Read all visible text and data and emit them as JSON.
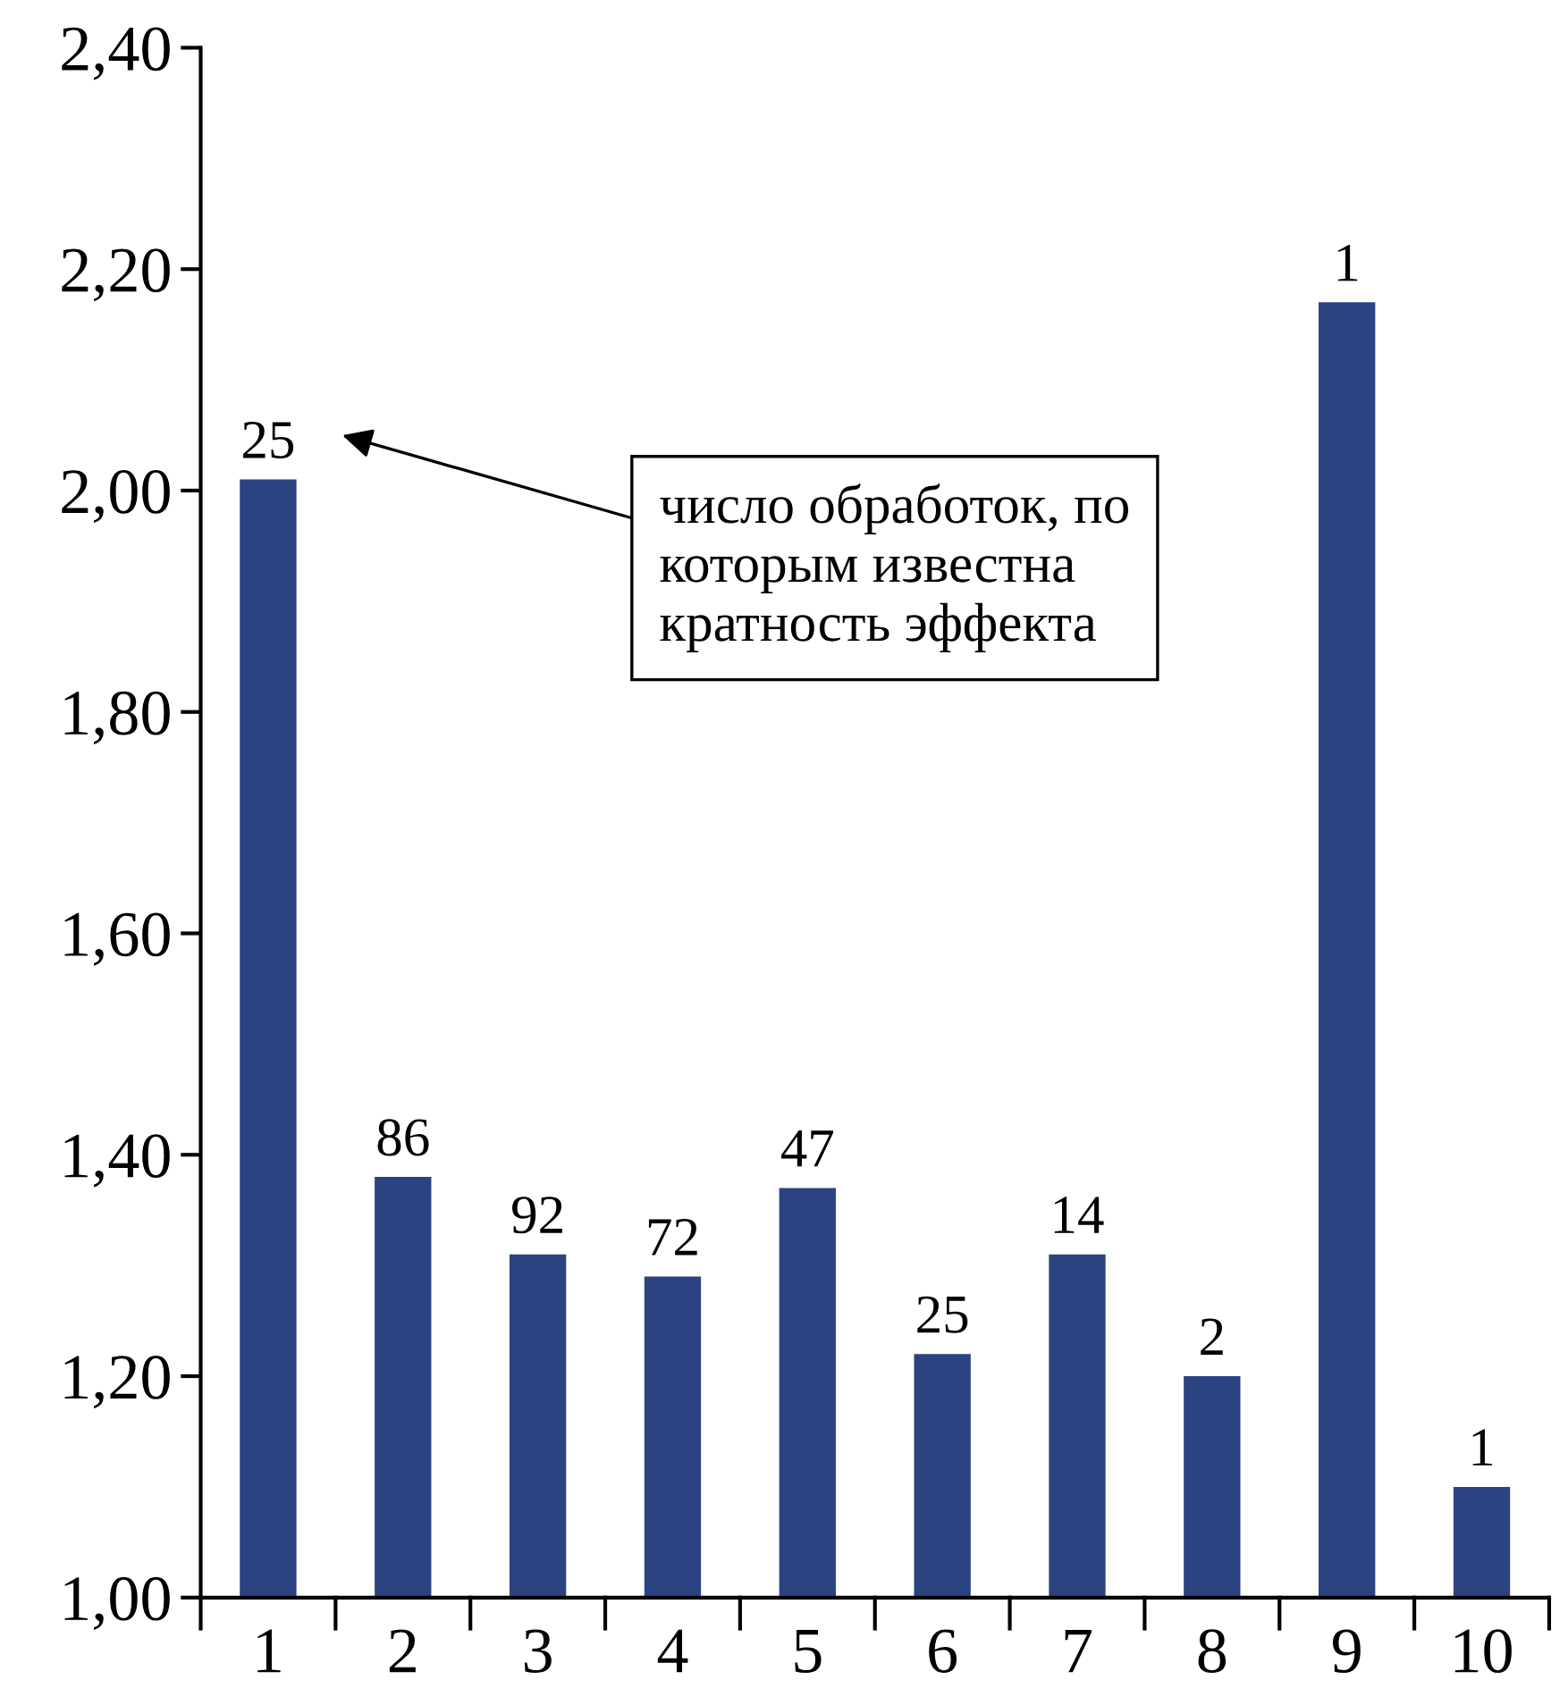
{
  "chart_data": {
    "type": "bar",
    "categories": [
      "1",
      "2",
      "3",
      "4",
      "5",
      "6",
      "7",
      "8",
      "9",
      "10"
    ],
    "values": [
      2.01,
      1.38,
      1.31,
      1.29,
      1.37,
      1.22,
      1.31,
      1.2,
      2.17,
      1.1
    ],
    "color": "#2b4380",
    "ylim": [
      1.0,
      2.4
    ],
    "yticks": [
      {
        "value": 1.0,
        "label": "1,00"
      },
      {
        "value": 1.2,
        "label": "1,20"
      },
      {
        "value": 1.4,
        "label": "1,40"
      },
      {
        "value": 1.6,
        "label": "1,60"
      },
      {
        "value": 1.8,
        "label": "1,80"
      },
      {
        "value": 2.0,
        "label": "2,00"
      },
      {
        "value": 2.2,
        "label": "2,20"
      },
      {
        "value": 2.4,
        "label": "2,40"
      }
    ],
    "annotations": [
      {
        "text": "25",
        "x": "1",
        "y": 2.01
      },
      {
        "text": "86",
        "x": "2",
        "y": 1.38
      },
      {
        "text": "92",
        "x": "3",
        "y": 1.31
      },
      {
        "text": "72",
        "x": "4",
        "y": 1.29
      },
      {
        "text": "47",
        "x": "5",
        "y": 1.37
      },
      {
        "text": "25",
        "x": "6",
        "y": 1.22
      },
      {
        "text": "14",
        "x": "7",
        "y": 1.31
      },
      {
        "text": "2",
        "x": "8",
        "y": 1.2
      },
      {
        "text": "1",
        "x": "9",
        "y": 2.17
      },
      {
        "text": "1",
        "x": "10",
        "y": 1.1
      },
      "число обработок, по которым известна кратность эффекта"
    ],
    "grid": false
  }
}
